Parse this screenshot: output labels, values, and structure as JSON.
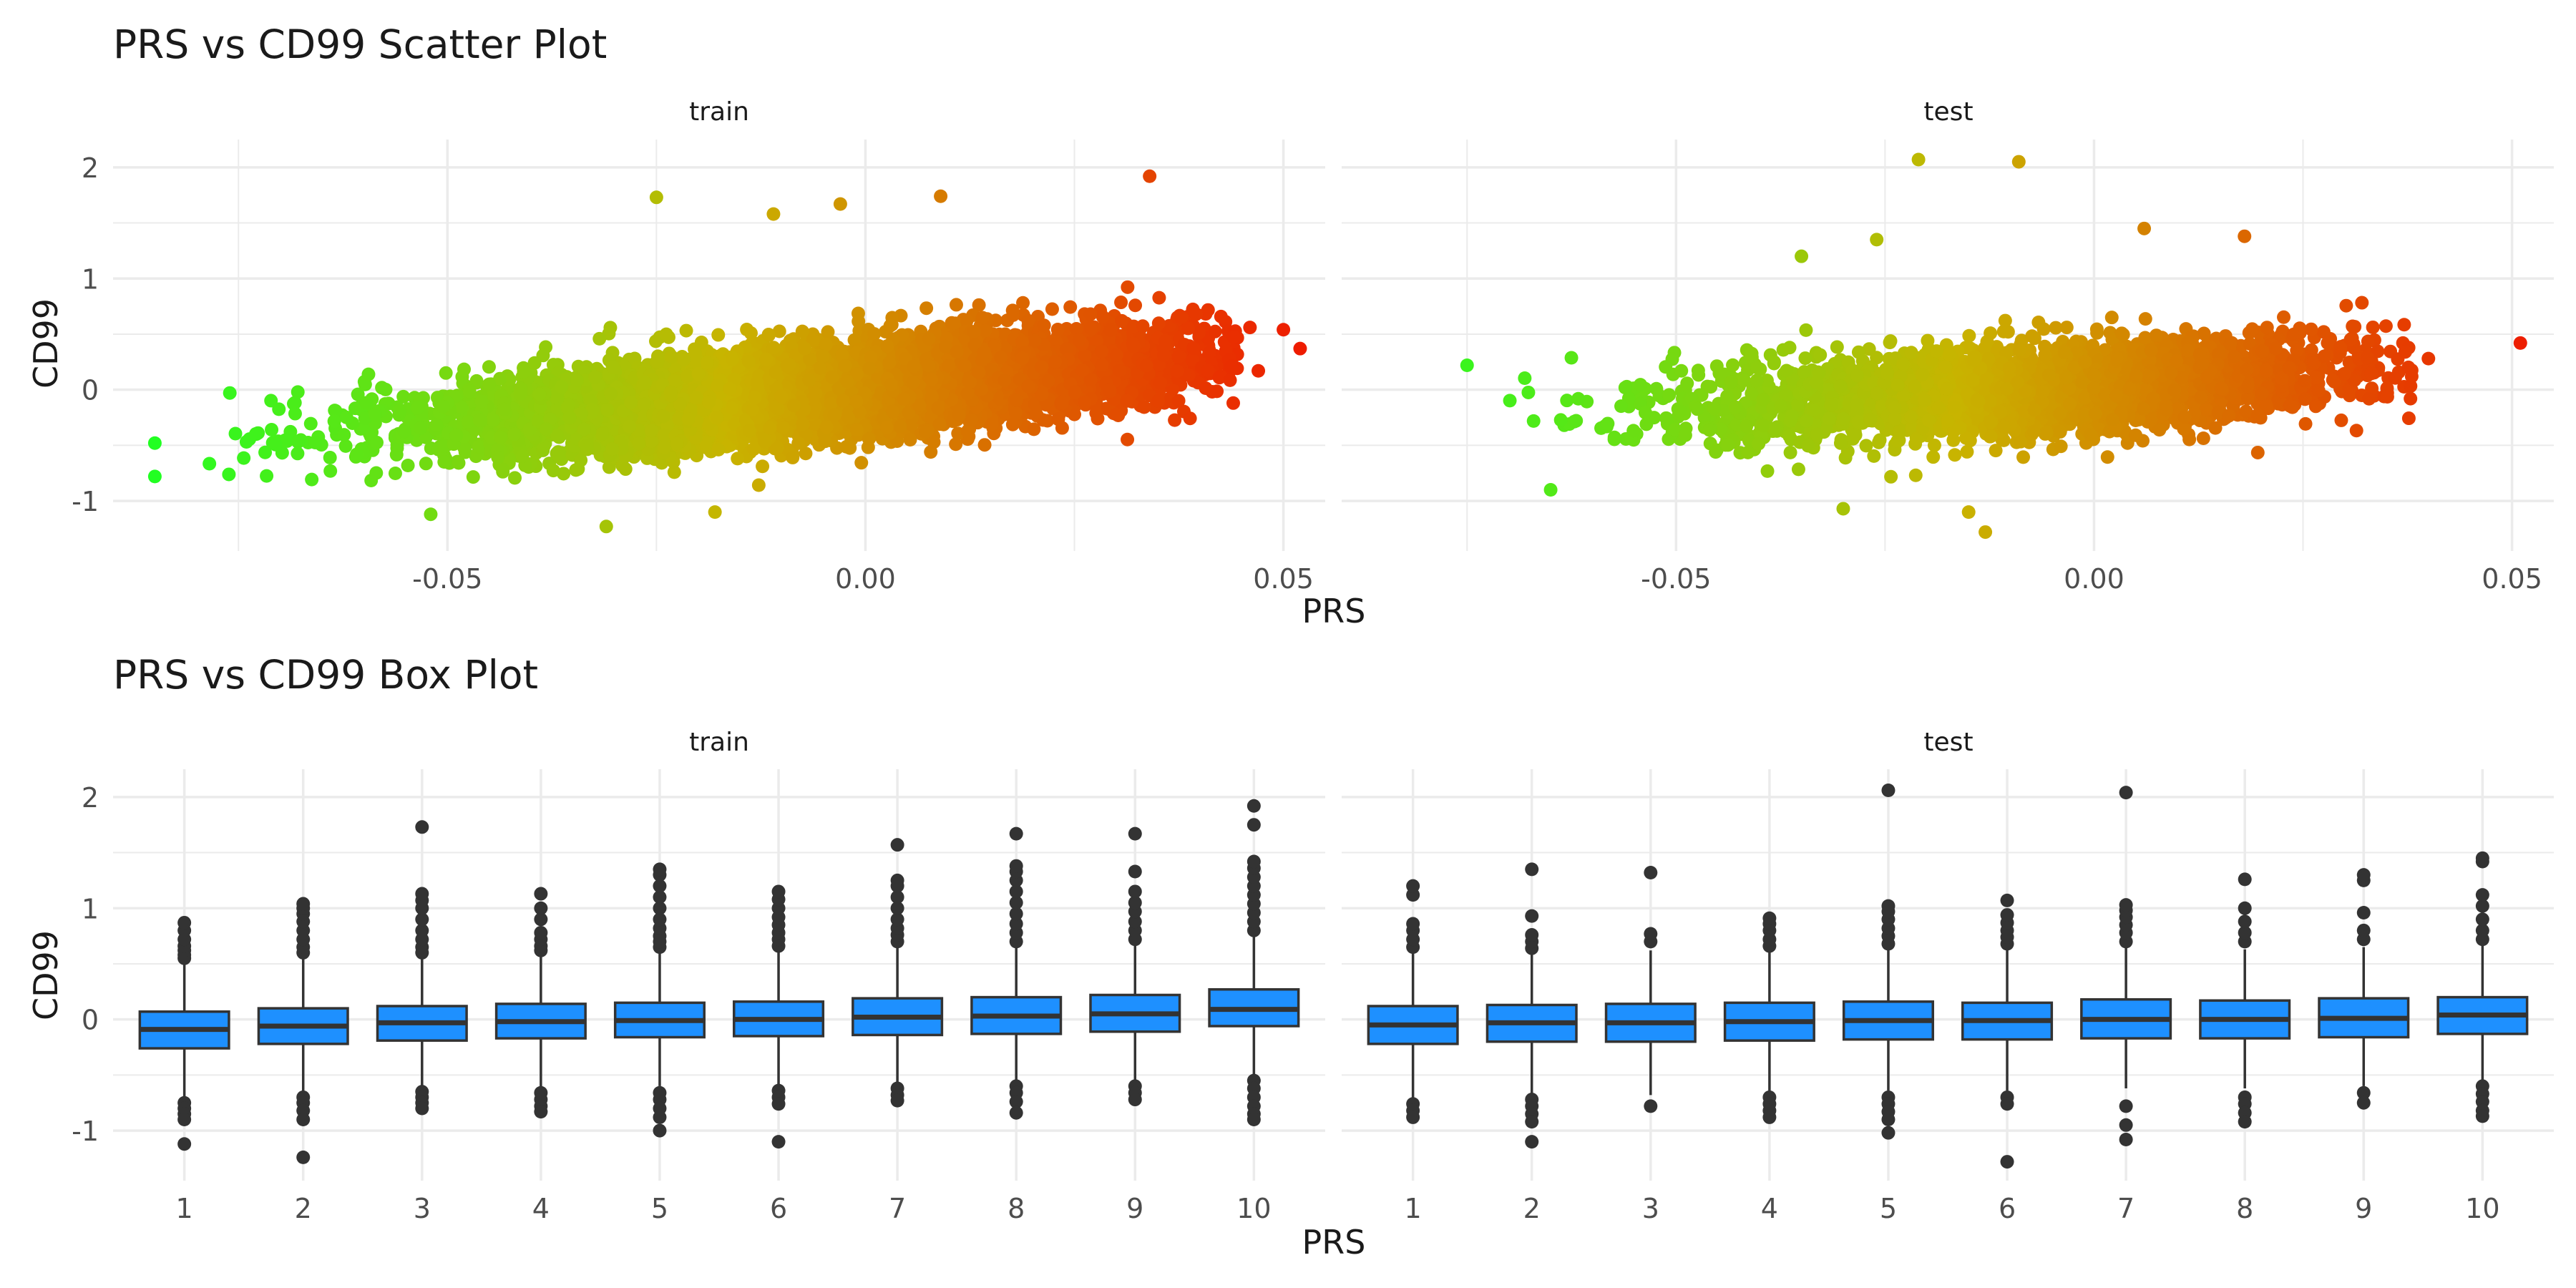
{
  "figure": {
    "scatter_title": "PRS vs CD99 Scatter Plot",
    "box_title": "PRS vs CD99 Box Plot",
    "x_label": "PRS",
    "y_label": "CD99",
    "panel_labels": [
      "train",
      "test"
    ]
  },
  "colors": {
    "low": "#22ff22",
    "mid": "#c8b400",
    "high": "#ee1c00",
    "box_fill": "#1e90ff",
    "box_line": "#333333",
    "grid": "#ebebeb"
  },
  "chart_data": [
    {
      "type": "scatter",
      "title": "PRS vs CD99 Scatter Plot",
      "xlabel": "PRS",
      "ylabel": "CD99",
      "facets": [
        "train",
        "test"
      ],
      "xlim": [
        -0.09,
        0.055
      ],
      "ylim": [
        -1.45,
        2.25
      ],
      "x_ticks": [
        -0.05,
        0.0,
        0.05
      ],
      "x_tick_labels": [
        "-0.05",
        "0.00",
        "0.05"
      ],
      "y_ticks": [
        -1,
        0,
        1,
        2
      ],
      "y_tick_labels": [
        "-1",
        "0",
        "1",
        "2"
      ],
      "grid": true,
      "color_by": "PRS",
      "series": [
        {
          "facet": "train",
          "cloud": {
            "x_min": -0.08,
            "x_max": 0.045,
            "x_center": -0.005,
            "x_sd": 0.022,
            "y_sd": 0.2,
            "y_slope": 6.5,
            "n": 7000
          },
          "outliers": [
            [
              -0.085,
              -0.48
            ],
            [
              -0.085,
              -0.78
            ],
            [
              -0.052,
              -1.12
            ],
            [
              -0.031,
              -1.23
            ],
            [
              -0.018,
              -1.1
            ],
            [
              -0.025,
              1.73
            ],
            [
              0.009,
              1.74
            ],
            [
              0.034,
              1.92
            ],
            [
              0.05,
              0.54
            ],
            [
              0.052,
              0.37
            ],
            [
              0.046,
              0.56
            ],
            [
              0.047,
              0.17
            ],
            [
              0.044,
              -0.12
            ],
            [
              -0.011,
              1.58
            ],
            [
              -0.003,
              1.67
            ]
          ]
        },
        {
          "facet": "test",
          "cloud": {
            "x_min": -0.07,
            "x_max": 0.038,
            "x_center": -0.008,
            "x_sd": 0.02,
            "y_sd": 0.2,
            "y_slope": 4.5,
            "n": 3200
          },
          "outliers": [
            [
              -0.021,
              2.07
            ],
            [
              -0.009,
              2.05
            ],
            [
              0.051,
              0.42
            ],
            [
              -0.075,
              0.22
            ],
            [
              -0.065,
              -0.9
            ],
            [
              -0.03,
              -1.07
            ],
            [
              -0.013,
              -1.28
            ],
            [
              -0.015,
              -1.1
            ],
            [
              0.006,
              1.45
            ],
            [
              0.018,
              1.38
            ],
            [
              -0.026,
              1.35
            ],
            [
              -0.035,
              1.2
            ],
            [
              0.04,
              0.28
            ],
            [
              0.038,
              0.12
            ]
          ]
        }
      ]
    },
    {
      "type": "box",
      "title": "PRS vs CD99 Box Plot",
      "xlabel": "PRS",
      "ylabel": "CD99",
      "facets": [
        "train",
        "test"
      ],
      "categories": [
        "1",
        "2",
        "3",
        "4",
        "5",
        "6",
        "7",
        "8",
        "9",
        "10"
      ],
      "ylim": [
        -1.45,
        2.25
      ],
      "y_ticks": [
        -1,
        0,
        1,
        2
      ],
      "y_tick_labels": [
        "-1",
        "0",
        "1",
        "2"
      ],
      "grid": true,
      "series": [
        {
          "facet": "train",
          "boxes": [
            {
              "q1": -0.26,
              "median": -0.09,
              "q3": 0.07,
              "whisker_low": -0.7,
              "whisker_high": 0.5,
              "outliers": [
                0.55,
                0.58,
                0.62,
                0.66,
                0.72,
                0.8,
                0.87,
                -0.75,
                -0.8,
                -0.85,
                -0.9,
                -1.12
              ]
            },
            {
              "q1": -0.22,
              "median": -0.06,
              "q3": 0.1,
              "whisker_low": -0.66,
              "whisker_high": 0.55,
              "outliers": [
                0.6,
                0.65,
                0.72,
                0.8,
                0.88,
                0.95,
                1.0,
                1.04,
                -0.7,
                -0.75,
                -0.82,
                -0.9,
                -1.24
              ]
            },
            {
              "q1": -0.19,
              "median": -0.03,
              "q3": 0.12,
              "whisker_low": -0.62,
              "whisker_high": 0.56,
              "outliers": [
                0.6,
                0.65,
                0.72,
                0.8,
                0.9,
                1.0,
                1.07,
                1.13,
                1.73,
                -0.65,
                -0.7,
                -0.75,
                -0.8
              ]
            },
            {
              "q1": -0.17,
              "median": -0.02,
              "q3": 0.14,
              "whisker_low": -0.62,
              "whisker_high": 0.58,
              "outliers": [
                0.62,
                0.66,
                0.72,
                0.78,
                0.9,
                1.0,
                1.13,
                -0.66,
                -0.72,
                -0.78,
                -0.83
              ]
            },
            {
              "q1": -0.16,
              "median": -0.01,
              "q3": 0.15,
              "whisker_low": -0.6,
              "whisker_high": 0.6,
              "outliers": [
                0.65,
                0.7,
                0.75,
                0.82,
                0.9,
                1.0,
                1.1,
                1.2,
                1.3,
                1.35,
                -0.66,
                -0.72,
                -0.8,
                -0.88,
                -1.0
              ]
            },
            {
              "q1": -0.15,
              "median": 0.0,
              "q3": 0.16,
              "whisker_low": -0.6,
              "whisker_high": 0.62,
              "outliers": [
                0.66,
                0.72,
                0.78,
                0.85,
                0.92,
                1.0,
                1.08,
                1.15,
                -0.64,
                -0.7,
                -0.76,
                -1.1
              ]
            },
            {
              "q1": -0.14,
              "median": 0.02,
              "q3": 0.19,
              "whisker_low": -0.58,
              "whisker_high": 0.65,
              "outliers": [
                0.7,
                0.76,
                0.82,
                0.9,
                1.0,
                1.1,
                1.2,
                1.25,
                1.57,
                -0.62,
                -0.68,
                -0.73
              ]
            },
            {
              "q1": -0.13,
              "median": 0.03,
              "q3": 0.2,
              "whisker_low": -0.56,
              "whisker_high": 0.66,
              "outliers": [
                0.7,
                0.78,
                0.86,
                0.95,
                1.05,
                1.15,
                1.25,
                1.33,
                1.38,
                1.67,
                -0.6,
                -0.66,
                -0.74,
                -0.84
              ]
            },
            {
              "q1": -0.11,
              "median": 0.05,
              "q3": 0.22,
              "whisker_low": -0.56,
              "whisker_high": 0.68,
              "outliers": [
                0.72,
                0.8,
                0.88,
                0.97,
                1.05,
                1.15,
                1.33,
                1.67,
                -0.6,
                -0.66,
                -0.72
              ]
            },
            {
              "q1": -0.06,
              "median": 0.09,
              "q3": 0.27,
              "whisker_low": -0.5,
              "whisker_high": 0.75,
              "outliers": [
                0.8,
                0.88,
                0.96,
                1.04,
                1.12,
                1.2,
                1.28,
                1.36,
                1.42,
                1.75,
                1.92,
                -0.55,
                -0.62,
                -0.7,
                -0.78,
                -0.85,
                -0.9
              ]
            }
          ]
        },
        {
          "facet": "test",
          "boxes": [
            {
              "q1": -0.22,
              "median": -0.05,
              "q3": 0.12,
              "whisker_low": -0.7,
              "whisker_high": 0.6,
              "outliers": [
                0.65,
                0.72,
                0.8,
                0.86,
                1.12,
                1.2,
                -0.76,
                -0.82,
                -0.88
              ]
            },
            {
              "q1": -0.2,
              "median": -0.03,
              "q3": 0.13,
              "whisker_low": -0.68,
              "whisker_high": 0.6,
              "outliers": [
                0.64,
                0.7,
                0.76,
                0.93,
                1.35,
                -0.72,
                -0.78,
                -0.85,
                -0.92,
                -1.1
              ]
            },
            {
              "q1": -0.2,
              "median": -0.03,
              "q3": 0.14,
              "whisker_low": -0.68,
              "whisker_high": 0.62,
              "outliers": [
                0.7,
                0.77,
                1.32,
                -0.78
              ]
            },
            {
              "q1": -0.19,
              "median": -0.02,
              "q3": 0.15,
              "whisker_low": -0.66,
              "whisker_high": 0.62,
              "outliers": [
                0.66,
                0.72,
                0.8,
                0.86,
                0.91,
                -0.7,
                -0.76,
                -0.82,
                -0.88
              ]
            },
            {
              "q1": -0.18,
              "median": -0.01,
              "q3": 0.16,
              "whisker_low": -0.64,
              "whisker_high": 0.63,
              "outliers": [
                0.68,
                0.75,
                0.82,
                0.9,
                0.97,
                1.02,
                2.06,
                -0.7,
                -0.76,
                -0.83,
                -0.9,
                -1.02
              ]
            },
            {
              "q1": -0.18,
              "median": -0.01,
              "q3": 0.15,
              "whisker_low": -0.64,
              "whisker_high": 0.63,
              "outliers": [
                0.68,
                0.74,
                0.8,
                0.87,
                0.94,
                1.07,
                -0.7,
                -0.76,
                -1.28
              ]
            },
            {
              "q1": -0.17,
              "median": 0.0,
              "q3": 0.18,
              "whisker_low": -0.62,
              "whisker_high": 0.65,
              "outliers": [
                0.7,
                0.78,
                0.85,
                0.92,
                0.98,
                1.03,
                2.04,
                -0.78,
                -0.95,
                -1.08
              ]
            },
            {
              "q1": -0.17,
              "median": 0.0,
              "q3": 0.17,
              "whisker_low": -0.62,
              "whisker_high": 0.63,
              "outliers": [
                0.7,
                0.78,
                0.88,
                1.0,
                1.26,
                -0.7,
                -0.76,
                -0.84,
                -0.92
              ]
            },
            {
              "q1": -0.16,
              "median": 0.01,
              "q3": 0.19,
              "whisker_low": -0.6,
              "whisker_high": 0.65,
              "outliers": [
                0.72,
                0.8,
                0.96,
                1.25,
                1.3,
                -0.66,
                -0.75
              ]
            },
            {
              "q1": -0.13,
              "median": 0.04,
              "q3": 0.2,
              "whisker_low": -0.57,
              "whisker_high": 0.68,
              "outliers": [
                0.72,
                0.8,
                0.9,
                1.02,
                1.12,
                1.42,
                1.45,
                -0.6,
                -0.67,
                -0.74,
                -0.82,
                -0.87
              ]
            }
          ]
        }
      ]
    }
  ]
}
